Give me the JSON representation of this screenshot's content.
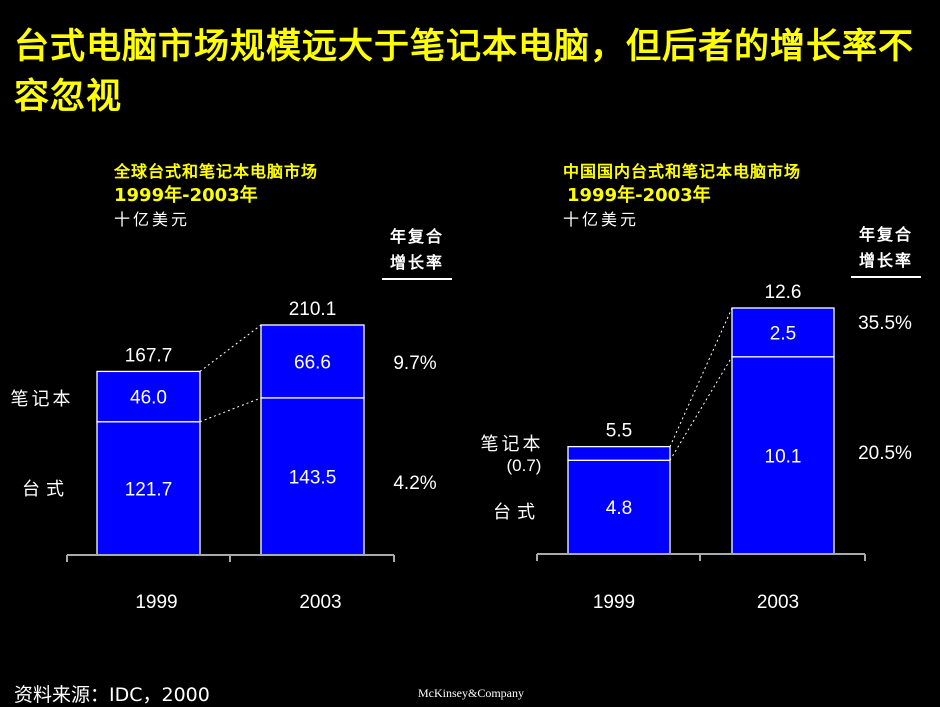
{
  "title": "台式电脑市场规模远大于笔记本电脑，但后者的增长率不容忽视",
  "colors": {
    "title": "#ffff00",
    "bar": "#0000ff",
    "background": "#000000",
    "text": "#ffffff"
  },
  "cagr_header": "年复合增长率",
  "footer": {
    "source": "资料来源：IDC，2000",
    "logo": "McKinsey&Company"
  },
  "chart_data": [
    {
      "type": "bar",
      "stacked": true,
      "title": "全球台式和笔记本电脑市场",
      "subtitle": "1999年-2003年",
      "unit": "十亿美元",
      "categories": [
        "1999",
        "2003"
      ],
      "series": [
        {
          "name": "台式",
          "values": [
            121.7,
            143.5
          ],
          "labels": [
            "121.7",
            "143.5"
          ],
          "cagr": "4.2%"
        },
        {
          "name": "笔记本",
          "values": [
            46.0,
            66.6
          ],
          "labels": [
            "46.0",
            "66.6"
          ],
          "cagr": "9.7%"
        }
      ],
      "totals": [
        "167.7",
        "210.1"
      ],
      "series_labels": [
        "台式",
        "笔记本"
      ],
      "ylim": [
        0,
        210.1
      ]
    },
    {
      "type": "bar",
      "stacked": true,
      "title": "中国国内台式和笔记本电脑市场",
      "subtitle": "1999年-2003年",
      "unit": "十亿美元",
      "categories": [
        "1999",
        "2003"
      ],
      "series": [
        {
          "name": "台式",
          "values": [
            4.8,
            10.1
          ],
          "labels": [
            "4.8",
            "10.1"
          ],
          "cagr": "20.5%"
        },
        {
          "name": "笔记本",
          "values": [
            0.7,
            2.5
          ],
          "labels": [
            "",
            "2.5"
          ],
          "cagr": "35.5%"
        }
      ],
      "totals": [
        "5.5",
        "12.6"
      ],
      "series_labels": [
        "台式",
        "笔记本"
      ],
      "notebook_1999_note": "(0.7)",
      "ylim": [
        0,
        12.6
      ]
    }
  ]
}
